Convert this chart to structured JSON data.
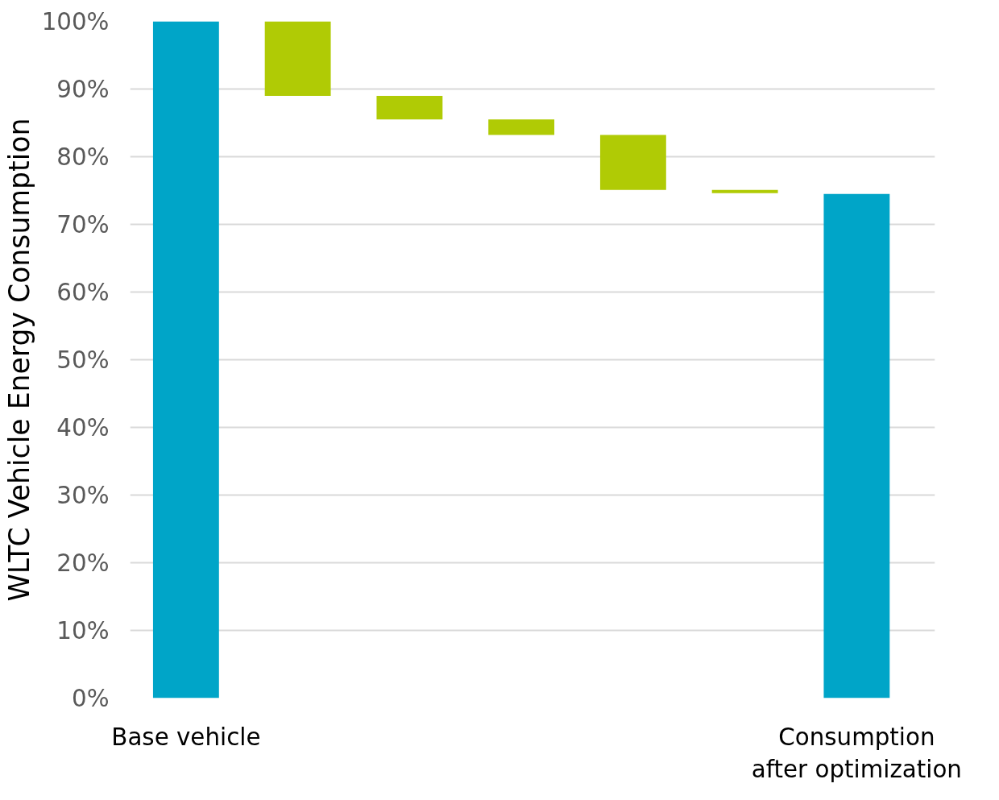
{
  "chart_data": {
    "type": "bar",
    "ylabel": "WLTC Vehicle Energy Consumption",
    "categories": [
      "Base vehicle",
      null,
      null,
      null,
      null,
      null,
      "Consumption\nafter optimization"
    ],
    "values": [
      100,
      11,
      3.5,
      2.3,
      8.1,
      0.5,
      74.5
    ],
    "base": [
      0,
      89,
      85.5,
      83.2,
      75.1,
      74.6,
      0
    ],
    "colors": [
      "#00a5c8",
      "#b0cb05",
      "#b0cb05",
      "#b0cb05",
      "#b0cb05",
      "#b0cb05",
      "#00a5c8"
    ],
    "ylim": [
      0,
      100
    ],
    "yticks": [
      {
        "value": 0,
        "label": "0%"
      },
      {
        "value": 10,
        "label": "10%"
      },
      {
        "value": 20,
        "label": "20%"
      },
      {
        "value": 30,
        "label": "30%"
      },
      {
        "value": 40,
        "label": "40%"
      },
      {
        "value": 50,
        "label": "50%"
      },
      {
        "value": 60,
        "label": "60%"
      },
      {
        "value": 70,
        "label": "70%"
      },
      {
        "value": 80,
        "label": "80%"
      },
      {
        "value": 90,
        "label": "90%"
      },
      {
        "value": 100,
        "label": "100%"
      }
    ],
    "grid": "y"
  }
}
